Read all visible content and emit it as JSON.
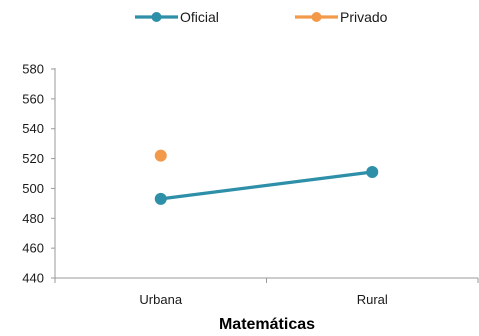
{
  "chart_data": {
    "type": "line",
    "title": "",
    "xlabel": "Matemáticas",
    "ylabel": "",
    "categories": [
      "Urbana",
      "Rural"
    ],
    "ylim": [
      440,
      580
    ],
    "yticks": [
      440,
      460,
      480,
      500,
      520,
      540,
      560,
      580
    ],
    "grid": false,
    "legend_position": "top",
    "series": [
      {
        "name": "Oficial",
        "values": [
          493,
          511
        ],
        "color": "#2e8fa8"
      },
      {
        "name": "Privado",
        "values": [
          522,
          null
        ],
        "color": "#f39a4a"
      }
    ]
  }
}
